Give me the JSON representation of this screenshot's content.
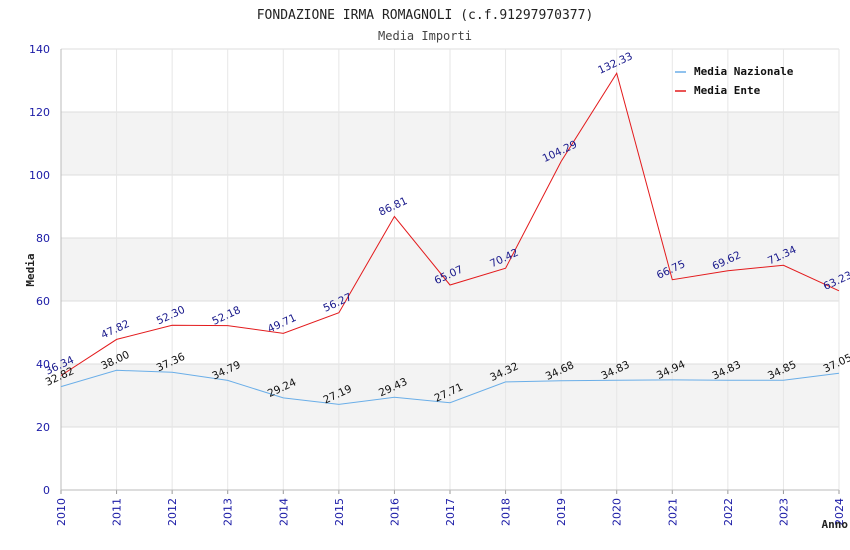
{
  "chart_data": {
    "type": "line",
    "title": "FONDAZIONE IRMA ROMAGNOLI (c.f.91297970377)",
    "subtitle": "Media Importi",
    "xlabel": "Anno",
    "ylabel": "Media",
    "x": [
      "2010",
      "2011",
      "2012",
      "2013",
      "2014",
      "2015",
      "2016",
      "2017",
      "2018",
      "2019",
      "2020",
      "2021",
      "2022",
      "2023",
      "2024"
    ],
    "ylim": [
      0,
      140
    ],
    "yticks": [
      0,
      20,
      40,
      60,
      80,
      100,
      120,
      140
    ],
    "grid": true,
    "legend_position": "top-right",
    "series": [
      {
        "name": "Media Nazionale",
        "color": "#6aaee8",
        "values": [
          32.82,
          38.0,
          37.36,
          34.79,
          29.24,
          27.19,
          29.43,
          27.71,
          34.32,
          34.68,
          34.83,
          34.94,
          34.83,
          34.85,
          37.05
        ],
        "labels": [
          "32.82",
          "38.00",
          "37.36",
          "34.79",
          "29.24",
          "27.19",
          "29.43",
          "27.71",
          "34.32",
          "34.68",
          "34.83",
          "34.94",
          "34.83",
          "34.85",
          "37.05"
        ]
      },
      {
        "name": "Media Ente",
        "color": "#e31a1c",
        "values": [
          36.34,
          47.82,
          52.3,
          52.18,
          49.71,
          56.27,
          86.81,
          65.07,
          70.42,
          104.29,
          132.33,
          66.75,
          69.62,
          71.34,
          63.23
        ],
        "labels": [
          "36.34",
          "47.82",
          "52.30",
          "52.18",
          "49.71",
          "56.27",
          "86.81",
          "65.07",
          "70.42",
          "104.29",
          "132.33",
          "66.75",
          "69.62",
          "71.34",
          "63.23"
        ]
      }
    ]
  }
}
